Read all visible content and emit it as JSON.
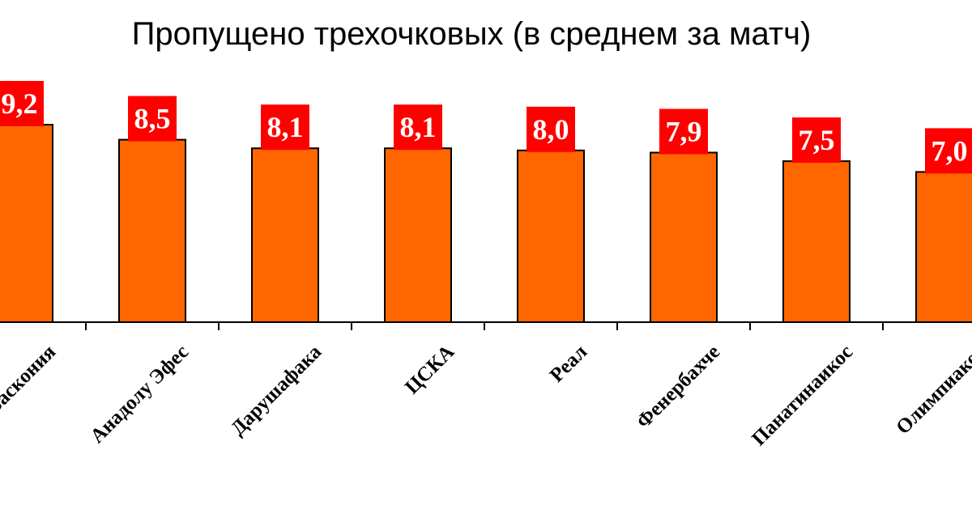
{
  "chart_data": {
    "type": "bar",
    "title": "Пропущено трехочковых (в среднем за матч)",
    "categories": [
      "Баскония",
      "Анадолу Эфес",
      "Дарушафака",
      "ЦСКА",
      "Реал",
      "Фенербахче",
      "Панатинаикос",
      "Олимпиакос"
    ],
    "values": [
      9.2,
      8.5,
      8.1,
      8.1,
      8.0,
      7.9,
      7.5,
      7.0
    ],
    "data_labels": [
      "9,2",
      "8,5",
      "8,1",
      "8,1",
      "8,0",
      "7,9",
      "7,5",
      "7,0"
    ],
    "xlabel": "",
    "ylabel": "",
    "grid": false,
    "legend": "none",
    "colors": {
      "bar": "#ff6600",
      "label_box": "#ff0000",
      "label_text": "#ffffff"
    }
  }
}
